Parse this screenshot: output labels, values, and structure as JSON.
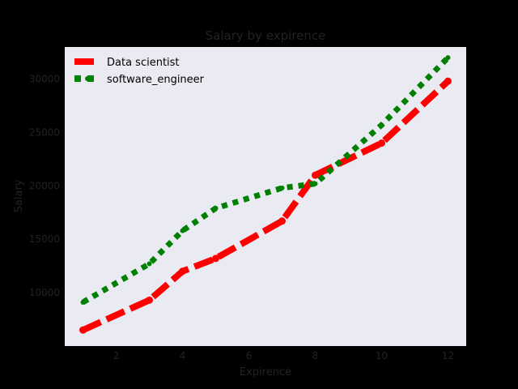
{
  "chart_data": {
    "type": "line",
    "title": "Salary by expirence",
    "xlabel": "Expirence",
    "ylabel": "Salary",
    "xlim": [
      0.45,
      12.55
    ],
    "ylim": [
      5000,
      33000
    ],
    "xticks": [
      2,
      4,
      6,
      8,
      10,
      12
    ],
    "yticks": [
      10000,
      15000,
      20000,
      25000,
      30000
    ],
    "grid": false,
    "legend_position": "top-left",
    "background_color": "#eaeaf2",
    "figure_color": "#000000",
    "series": [
      {
        "name": "Data scientist",
        "color": "#ff0000",
        "line_style": "dashed",
        "marker": "circle",
        "x": [
          1,
          3,
          4,
          5,
          7,
          8,
          10,
          12
        ],
        "y": [
          6500,
          9300,
          12000,
          13200,
          16700,
          21000,
          24000,
          29800
        ]
      },
      {
        "name": "software_engineer",
        "color": "#008000",
        "line_style": "dotted",
        "marker": "circle",
        "x": [
          1,
          3,
          4,
          5,
          7,
          8,
          10,
          12
        ],
        "y": [
          9100,
          12700,
          15800,
          17900,
          19800,
          20200,
          25700,
          32000
        ]
      }
    ]
  }
}
